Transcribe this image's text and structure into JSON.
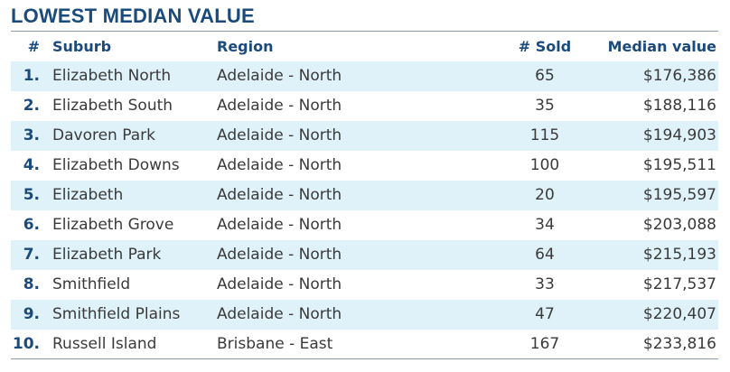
{
  "title": "LOWEST MEDIAN VALUE",
  "table": {
    "header": [
      "#",
      "Suburb",
      "Region",
      "# Sold",
      "Median value"
    ],
    "rows": [
      [
        "1.",
        "Elizabeth North",
        "Adelaide - North",
        65,
        "$176,386"
      ],
      [
        "2.",
        "Elizabeth South",
        "Adelaide - North",
        35,
        "$188,116"
      ],
      [
        "3.",
        "Davoren Park",
        "Adelaide - North",
        115,
        "$194,903"
      ],
      [
        "4.",
        "Elizabeth Downs",
        "Adelaide - North",
        100,
        "$195,511"
      ],
      [
        "5.",
        "Elizabeth",
        "Adelaide - North",
        20,
        "$195,597"
      ],
      [
        "6.",
        "Elizabeth Grove",
        "Adelaide - North",
        34,
        "$203,088"
      ],
      [
        "7.",
        "Elizabeth Park",
        "Adelaide - North",
        64,
        "$215,193"
      ],
      [
        "8.",
        "Smithfield",
        "Adelaide - North",
        33,
        "$217,537"
      ],
      [
        "9.",
        "Smithfield Plains",
        "Adelaide - North",
        47,
        "$220,407"
      ],
      [
        "10.",
        "Russell Island",
        "Brisbane - East",
        167,
        "$233,816"
      ]
    ]
  }
}
